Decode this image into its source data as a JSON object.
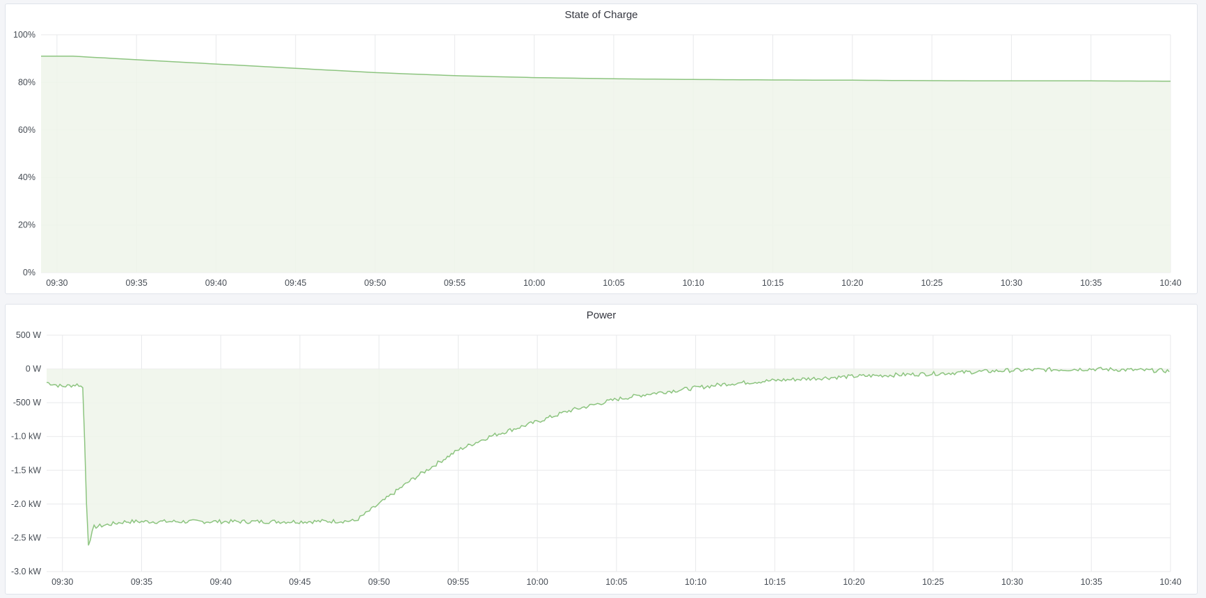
{
  "colors": {
    "line": "#8cc47f",
    "fill": "#eef5ea",
    "grid": "#e8e9eb",
    "background": "#f4f5f8"
  },
  "chart_data": [
    {
      "type": "area",
      "title": "State of Charge",
      "xlim": [
        "09:29",
        "10:40"
      ],
      "ylim": [
        0,
        100
      ],
      "grid": true,
      "x_ticks": [
        "09:30",
        "09:35",
        "09:40",
        "09:45",
        "09:50",
        "09:55",
        "10:00",
        "10:05",
        "10:10",
        "10:15",
        "10:20",
        "10:25",
        "10:30",
        "10:35",
        "10:40"
      ],
      "y_ticks": [
        {
          "value": 0,
          "label": "0%"
        },
        {
          "value": 20,
          "label": "20%"
        },
        {
          "value": 40,
          "label": "40%"
        },
        {
          "value": 60,
          "label": "60%"
        },
        {
          "value": 80,
          "label": "80%"
        },
        {
          "value": 100,
          "label": "100%"
        }
      ],
      "x": [
        "09:29",
        "09:31",
        "09:35",
        "09:40",
        "09:45",
        "09:50",
        "09:55",
        "10:00",
        "10:05",
        "10:10",
        "10:15",
        "10:20",
        "10:25",
        "10:30",
        "10:35",
        "10:40"
      ],
      "values": [
        91,
        91,
        89.5,
        87.7,
        85.9,
        84.1,
        82.8,
        82.0,
        81.5,
        81.2,
        81.0,
        80.9,
        80.7,
        80.6,
        80.6,
        80.5
      ]
    },
    {
      "type": "area",
      "title": "Power",
      "xlim": [
        "09:29",
        "10:40"
      ],
      "ylim": [
        -3000,
        500
      ],
      "grid": true,
      "x_ticks": [
        "09:30",
        "09:35",
        "09:40",
        "09:45",
        "09:50",
        "09:55",
        "10:00",
        "10:05",
        "10:10",
        "10:15",
        "10:20",
        "10:25",
        "10:30",
        "10:35",
        "10:40"
      ],
      "y_ticks": [
        {
          "value": 500,
          "label": "500 W"
        },
        {
          "value": 0,
          "label": "0 W"
        },
        {
          "value": -500,
          "label": "-500 W"
        },
        {
          "value": -1000,
          "label": "-1.0 kW"
        },
        {
          "value": -1500,
          "label": "-1.5 kW"
        },
        {
          "value": -2000,
          "label": "-2.0 kW"
        },
        {
          "value": -2500,
          "label": "-2.5 kW"
        },
        {
          "value": -3000,
          "label": "-3.0 kW"
        }
      ],
      "x": [
        "09:29",
        "09:30",
        "09:31",
        "09:31.3",
        "09:31.6",
        "09:32",
        "09:33",
        "09:34",
        "09:40",
        "09:45",
        "09:48.5",
        "09:50",
        "09:52",
        "09:54",
        "09:55",
        "09:57",
        "10:00",
        "10:02",
        "10:05",
        "10:07",
        "10:10",
        "10:12",
        "10:15",
        "10:20",
        "10:25",
        "10:30",
        "10:35",
        "10:40"
      ],
      "values": [
        -200,
        -260,
        -230,
        -280,
        -2620,
        -2340,
        -2300,
        -2260,
        -2260,
        -2260,
        -2250,
        -2000,
        -1650,
        -1350,
        -1200,
        -1000,
        -780,
        -620,
        -450,
        -370,
        -280,
        -220,
        -170,
        -110,
        -70,
        -20,
        0,
        -30
      ]
    }
  ]
}
